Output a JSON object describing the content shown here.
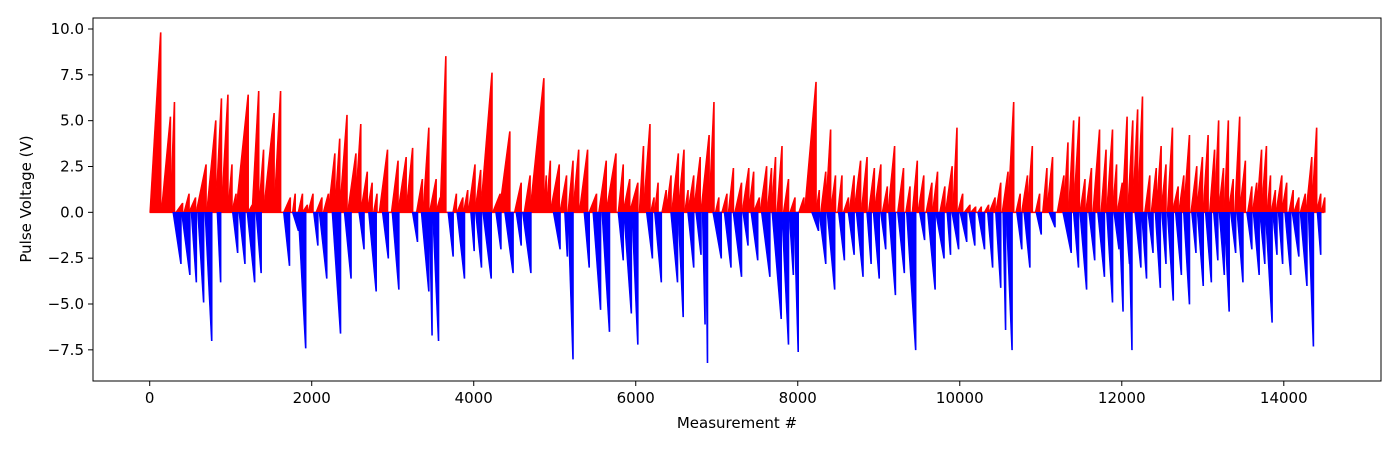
{
  "chart_data": {
    "type": "bar",
    "xlabel": "Measurement #",
    "ylabel": "Pulse Voltage (V)",
    "xlim": [
      -700,
      15200
    ],
    "ylim": [
      -9.2,
      10.6
    ],
    "grid": false,
    "legend": "none",
    "x_ticks": [
      0,
      2000,
      4000,
      6000,
      8000,
      10000,
      12000,
      14000
    ],
    "x_tick_labels": [
      "0",
      "2000",
      "4000",
      "6000",
      "8000",
      "10000",
      "12000",
      "14000"
    ],
    "y_ticks": [
      -7.5,
      -5.0,
      -2.5,
      0.0,
      2.5,
      5.0,
      7.5,
      10.0
    ],
    "y_tick_labels": [
      "−7.5",
      "−5.0",
      "−2.5",
      "0.0",
      "2.5",
      "5.0",
      "7.5",
      "10.0"
    ],
    "colors": {
      "positive": "#ff0000",
      "negative": "#0000ff",
      "axes": "#000000",
      "background": "#ffffff"
    },
    "positive_pulse_ramps": [
      [
        0,
        130,
        9.8
      ],
      [
        140,
        250,
        5.2
      ],
      [
        250,
        300,
        6.0
      ],
      [
        320,
        400,
        0.5
      ],
      [
        420,
        480,
        1.0
      ],
      [
        480,
        560,
        0.8
      ],
      [
        570,
        690,
        2.6
      ],
      [
        700,
        810,
        5.0
      ],
      [
        810,
        880,
        6.2
      ],
      [
        880,
        960,
        6.4
      ],
      [
        960,
        1010,
        2.6
      ],
      [
        1010,
        1060,
        1.0
      ],
      [
        1060,
        1210,
        6.4
      ],
      [
        1210,
        1260,
        0.4
      ],
      [
        1260,
        1340,
        6.6
      ],
      [
        1340,
        1400,
        3.4
      ],
      [
        1400,
        1530,
        5.4
      ],
      [
        1530,
        1610,
        6.6
      ],
      [
        1650,
        1730,
        0.8
      ],
      [
        1760,
        1790,
        1.0
      ],
      [
        1830,
        1880,
        1.0
      ],
      [
        1880,
        1940,
        0.4
      ],
      [
        1950,
        2010,
        1.0
      ],
      [
        2050,
        2120,
        0.8
      ],
      [
        2140,
        2200,
        1.0
      ],
      [
        2200,
        2280,
        3.2
      ],
      [
        2280,
        2340,
        4.0
      ],
      [
        2340,
        2430,
        5.3
      ],
      [
        2440,
        2540,
        3.2
      ],
      [
        2530,
        2600,
        4.8
      ],
      [
        2600,
        2680,
        2.2
      ],
      [
        2680,
        2740,
        1.6
      ],
      [
        2760,
        2800,
        1.0
      ],
      [
        2830,
        2930,
        3.4
      ],
      [
        2980,
        3060,
        2.8
      ],
      [
        3060,
        3160,
        3.0
      ],
      [
        3160,
        3240,
        3.5
      ],
      [
        3290,
        3360,
        1.8
      ],
      [
        3370,
        3440,
        4.6
      ],
      [
        3450,
        3530,
        1.8
      ],
      [
        3530,
        3580,
        0.8
      ],
      [
        3580,
        3650,
        8.5
      ],
      [
        3740,
        3780,
        1.0
      ],
      [
        3790,
        3860,
        0.8
      ],
      [
        3870,
        3920,
        1.2
      ],
      [
        3930,
        4010,
        2.6
      ],
      [
        4010,
        4080,
        2.3
      ],
      [
        4080,
        4220,
        7.6
      ],
      [
        4230,
        4320,
        1.0
      ],
      [
        4310,
        4440,
        4.4
      ],
      [
        4500,
        4580,
        1.6
      ],
      [
        4620,
        4690,
        2.0
      ],
      [
        4690,
        4860,
        7.3
      ],
      [
        4860,
        4890,
        2.0
      ],
      [
        4890,
        4940,
        2.8
      ],
      [
        4940,
        5050,
        2.6
      ],
      [
        5060,
        5140,
        2.0
      ],
      [
        5160,
        5220,
        2.8
      ],
      [
        5220,
        5290,
        3.4
      ],
      [
        5300,
        5400,
        3.4
      ],
      [
        5420,
        5510,
        1.0
      ],
      [
        5540,
        5630,
        2.8
      ],
      [
        5630,
        5750,
        3.2
      ],
      [
        5780,
        5840,
        2.6
      ],
      [
        5840,
        5920,
        1.8
      ],
      [
        5920,
        6020,
        1.6
      ],
      [
        6040,
        6090,
        3.6
      ],
      [
        6090,
        6170,
        4.8
      ],
      [
        6180,
        6220,
        0.8
      ],
      [
        6230,
        6270,
        1.6
      ],
      [
        6320,
        6370,
        1.2
      ],
      [
        6370,
        6430,
        2.0
      ],
      [
        6440,
        6520,
        3.2
      ],
      [
        6520,
        6590,
        3.4
      ],
      [
        6600,
        6640,
        1.2
      ],
      [
        6640,
        6710,
        2.0
      ],
      [
        6710,
        6790,
        3.0
      ],
      [
        6800,
        6900,
        4.2
      ],
      [
        6900,
        6960,
        6.0
      ],
      [
        6980,
        7020,
        0.8
      ],
      [
        7060,
        7120,
        1.0
      ],
      [
        7140,
        7200,
        2.4
      ],
      [
        7220,
        7300,
        1.6
      ],
      [
        7310,
        7390,
        2.4
      ],
      [
        7390,
        7450,
        2.2
      ],
      [
        7450,
        7520,
        0.8
      ],
      [
        7530,
        7610,
        2.5
      ],
      [
        7620,
        7670,
        2.4
      ],
      [
        7670,
        7720,
        3.0
      ],
      [
        7740,
        7800,
        3.6
      ],
      [
        7820,
        7880,
        1.8
      ],
      [
        7900,
        7960,
        0.8
      ],
      [
        8010,
        8070,
        0.8
      ],
      [
        8080,
        8220,
        7.1
      ],
      [
        8220,
        8260,
        1.2
      ],
      [
        8280,
        8340,
        2.2
      ],
      [
        8340,
        8400,
        4.5
      ],
      [
        8400,
        8460,
        2.0
      ],
      [
        8490,
        8540,
        2.0
      ],
      [
        8560,
        8620,
        0.8
      ],
      [
        8630,
        8690,
        2.0
      ],
      [
        8690,
        8770,
        2.8
      ],
      [
        8780,
        8850,
        3.0
      ],
      [
        8870,
        8940,
        2.4
      ],
      [
        8940,
        9020,
        2.6
      ],
      [
        9040,
        9100,
        1.4
      ],
      [
        9110,
        9190,
        3.6
      ],
      [
        9230,
        9300,
        2.4
      ],
      [
        9330,
        9380,
        1.4
      ],
      [
        9410,
        9470,
        2.8
      ],
      [
        9480,
        9550,
        2.0
      ],
      [
        9580,
        9650,
        1.6
      ],
      [
        9660,
        9720,
        2.2
      ],
      [
        9750,
        9810,
        1.4
      ],
      [
        9820,
        9900,
        2.5
      ],
      [
        9910,
        9960,
        4.6
      ],
      [
        9970,
        10030,
        1.0
      ],
      [
        10050,
        10120,
        0.4
      ],
      [
        10130,
        10190,
        0.3
      ],
      [
        10220,
        10260,
        0.3
      ],
      [
        10300,
        10350,
        0.4
      ],
      [
        10360,
        10430,
        0.8
      ],
      [
        10440,
        10500,
        1.6
      ],
      [
        10520,
        10590,
        2.2
      ],
      [
        10590,
        10660,
        6.0
      ],
      [
        10690,
        10740,
        1.0
      ],
      [
        10760,
        10830,
        2.0
      ],
      [
        10830,
        10890,
        3.6
      ],
      [
        10930,
        10980,
        1.0
      ],
      [
        11020,
        11070,
        2.4
      ],
      [
        11070,
        11140,
        3.0
      ],
      [
        11200,
        11280,
        2.0
      ],
      [
        11280,
        11330,
        3.8
      ],
      [
        11340,
        11400,
        5.0
      ],
      [
        11400,
        11470,
        5.2
      ],
      [
        11480,
        11540,
        1.8
      ],
      [
        11550,
        11620,
        2.4
      ],
      [
        11640,
        11720,
        4.5
      ],
      [
        11740,
        11800,
        3.4
      ],
      [
        11810,
        11880,
        4.5
      ],
      [
        11880,
        11930,
        2.6
      ],
      [
        11940,
        12000,
        1.6
      ],
      [
        12000,
        12060,
        5.2
      ],
      [
        12070,
        12130,
        5.0
      ],
      [
        12130,
        12190,
        5.6
      ],
      [
        12190,
        12250,
        6.3
      ],
      [
        12280,
        12340,
        2.0
      ],
      [
        12360,
        12420,
        2.4
      ],
      [
        12420,
        12480,
        3.6
      ],
      [
        12480,
        12540,
        2.6
      ],
      [
        12560,
        12620,
        4.6
      ],
      [
        12620,
        12690,
        1.4
      ],
      [
        12700,
        12760,
        2.0
      ],
      [
        12760,
        12830,
        4.2
      ],
      [
        12850,
        12920,
        2.5
      ],
      [
        12920,
        12990,
        3.0
      ],
      [
        13000,
        13060,
        4.2
      ],
      [
        13080,
        13140,
        3.4
      ],
      [
        13140,
        13190,
        5.0
      ],
      [
        13190,
        13250,
        2.4
      ],
      [
        13260,
        13310,
        5.0
      ],
      [
        13310,
        13370,
        1.8
      ],
      [
        13390,
        13450,
        5.2
      ],
      [
        13450,
        13520,
        2.8
      ],
      [
        13550,
        13600,
        1.4
      ],
      [
        13610,
        13660,
        1.6
      ],
      [
        13660,
        13720,
        3.4
      ],
      [
        13720,
        13780,
        3.6
      ],
      [
        13790,
        13830,
        2.0
      ],
      [
        13840,
        13890,
        1.2
      ],
      [
        13900,
        13970,
        2.0
      ],
      [
        13970,
        14030,
        1.6
      ],
      [
        14060,
        14110,
        1.2
      ],
      [
        14120,
        14180,
        0.8
      ],
      [
        14200,
        14260,
        1.0
      ],
      [
        14270,
        14340,
        3.0
      ],
      [
        14340,
        14400,
        4.6
      ],
      [
        14400,
        14450,
        1.0
      ],
      [
        14460,
        14500,
        0.8
      ]
    ],
    "negative_pulse_ramps": [
      [
        285,
        380,
        -2.8
      ],
      [
        390,
        490,
        -3.4
      ],
      [
        510,
        570,
        -3.8
      ],
      [
        590,
        660,
        -4.9
      ],
      [
        680,
        760,
        -7.0
      ],
      [
        830,
        870,
        -3.8
      ],
      [
        1020,
        1080,
        -2.2
      ],
      [
        1100,
        1170,
        -2.8
      ],
      [
        1200,
        1290,
        -3.8
      ],
      [
        1310,
        1370,
        -3.3
      ],
      [
        1650,
        1720,
        -2.9
      ],
      [
        1760,
        1830,
        -1.0
      ],
      [
        1830,
        1920,
        -7.4
      ],
      [
        2020,
        2070,
        -1.8
      ],
      [
        2090,
        2180,
        -3.6
      ],
      [
        2250,
        2350,
        -6.6
      ],
      [
        2400,
        2480,
        -3.6
      ],
      [
        2580,
        2640,
        -2.0
      ],
      [
        2700,
        2790,
        -4.3
      ],
      [
        2870,
        2940,
        -2.5
      ],
      [
        2990,
        3070,
        -4.2
      ],
      [
        3240,
        3300,
        -1.6
      ],
      [
        3350,
        3440,
        -4.3
      ],
      [
        3450,
        3480,
        -6.7
      ],
      [
        3490,
        3560,
        -7.0
      ],
      [
        3680,
        3740,
        -2.4
      ],
      [
        3790,
        3880,
        -3.6
      ],
      [
        3960,
        4000,
        -2.1
      ],
      [
        4020,
        4090,
        -3.0
      ],
      [
        4110,
        4210,
        -3.6
      ],
      [
        4270,
        4330,
        -2.0
      ],
      [
        4380,
        4480,
        -3.3
      ],
      [
        4520,
        4580,
        -1.8
      ],
      [
        4600,
        4700,
        -3.3
      ],
      [
        4980,
        5060,
        -2.0
      ],
      [
        5120,
        5150,
        -2.4
      ],
      [
        5160,
        5220,
        -8.0
      ],
      [
        5360,
        5420,
        -3.0
      ],
      [
        5470,
        5560,
        -5.3
      ],
      [
        5580,
        5670,
        -6.5
      ],
      [
        5780,
        5840,
        -2.6
      ],
      [
        5850,
        5940,
        -5.5
      ],
      [
        5950,
        6020,
        -7.2
      ],
      [
        6130,
        6200,
        -2.5
      ],
      [
        6230,
        6310,
        -3.8
      ],
      [
        6430,
        6510,
        -3.8
      ],
      [
        6520,
        6580,
        -5.7
      ],
      [
        6640,
        6710,
        -3.0
      ],
      [
        6740,
        6800,
        -2.3
      ],
      [
        6820,
        6850,
        -6.1
      ],
      [
        6860,
        6880,
        -8.2
      ],
      [
        6950,
        7050,
        -2.5
      ],
      [
        7090,
        7170,
        -3.0
      ],
      [
        7200,
        7300,
        -3.5
      ],
      [
        7320,
        7380,
        -1.8
      ],
      [
        7420,
        7500,
        -2.6
      ],
      [
        7550,
        7650,
        -3.5
      ],
      [
        7680,
        7790,
        -5.8
      ],
      [
        7800,
        7880,
        -7.2
      ],
      [
        7890,
        7940,
        -3.4
      ],
      [
        7950,
        8000,
        -7.6
      ],
      [
        8170,
        8250,
        -1.0
      ],
      [
        8260,
        8340,
        -2.8
      ],
      [
        8360,
        8450,
        -4.2
      ],
      [
        8500,
        8570,
        -2.6
      ],
      [
        8620,
        8690,
        -2.3
      ],
      [
        8720,
        8800,
        -3.5
      ],
      [
        8850,
        8900,
        -2.8
      ],
      [
        8930,
        9000,
        -3.6
      ],
      [
        9020,
        9080,
        -2.0
      ],
      [
        9120,
        9200,
        -4.5
      ],
      [
        9230,
        9310,
        -3.3
      ],
      [
        9340,
        9450,
        -7.5
      ],
      [
        9500,
        9560,
        -1.5
      ],
      [
        9600,
        9690,
        -4.2
      ],
      [
        9700,
        9800,
        -2.5
      ],
      [
        9840,
        9880,
        -2.3
      ],
      [
        9900,
        9980,
        -2.0
      ],
      [
        10000,
        10080,
        -1.6
      ],
      [
        10110,
        10180,
        -1.8
      ],
      [
        10220,
        10300,
        -2.0
      ],
      [
        10340,
        10400,
        -3.0
      ],
      [
        10440,
        10500,
        -4.1
      ],
      [
        10530,
        10560,
        -6.4
      ],
      [
        10570,
        10640,
        -7.5
      ],
      [
        10700,
        10760,
        -2.0
      ],
      [
        10790,
        10860,
        -3.0
      ],
      [
        10940,
        11000,
        -1.2
      ],
      [
        11100,
        11170,
        -0.8
      ],
      [
        11270,
        11370,
        -2.2
      ],
      [
        11400,
        11460,
        -3.0
      ],
      [
        11480,
        11560,
        -4.2
      ],
      [
        11590,
        11660,
        -2.6
      ],
      [
        11700,
        11780,
        -3.5
      ],
      [
        11810,
        11880,
        -4.9
      ],
      [
        11900,
        11960,
        -2.0
      ],
      [
        11960,
        12010,
        -5.4
      ],
      [
        12040,
        12090,
        -2.8
      ],
      [
        12080,
        12120,
        -7.5
      ],
      [
        12160,
        12230,
        -3.0
      ],
      [
        12240,
        12300,
        -3.6
      ],
      [
        12320,
        12380,
        -2.2
      ],
      [
        12410,
        12470,
        -4.1
      ],
      [
        12490,
        12540,
        -2.8
      ],
      [
        12560,
        12630,
        -4.8
      ],
      [
        12660,
        12730,
        -3.4
      ],
      [
        12760,
        12830,
        -5.0
      ],
      [
        12860,
        12910,
        -2.2
      ],
      [
        12930,
        13000,
        -4.0
      ],
      [
        13030,
        13100,
        -3.8
      ],
      [
        13130,
        13180,
        -2.6
      ],
      [
        13200,
        13260,
        -3.4
      ],
      [
        13260,
        13320,
        -5.4
      ],
      [
        13340,
        13400,
        -2.2
      ],
      [
        13420,
        13490,
        -3.8
      ],
      [
        13540,
        13600,
        -2.0
      ],
      [
        13620,
        13690,
        -3.4
      ],
      [
        13700,
        13760,
        -2.8
      ],
      [
        13770,
        13850,
        -6.0
      ],
      [
        13860,
        13910,
        -2.3
      ],
      [
        13930,
        13980,
        -2.8
      ],
      [
        14010,
        14080,
        -3.4
      ],
      [
        14100,
        14180,
        -2.4
      ],
      [
        14200,
        14280,
        -4.0
      ],
      [
        14300,
        14360,
        -7.3
      ],
      [
        14410,
        14450,
        -2.3
      ]
    ]
  }
}
